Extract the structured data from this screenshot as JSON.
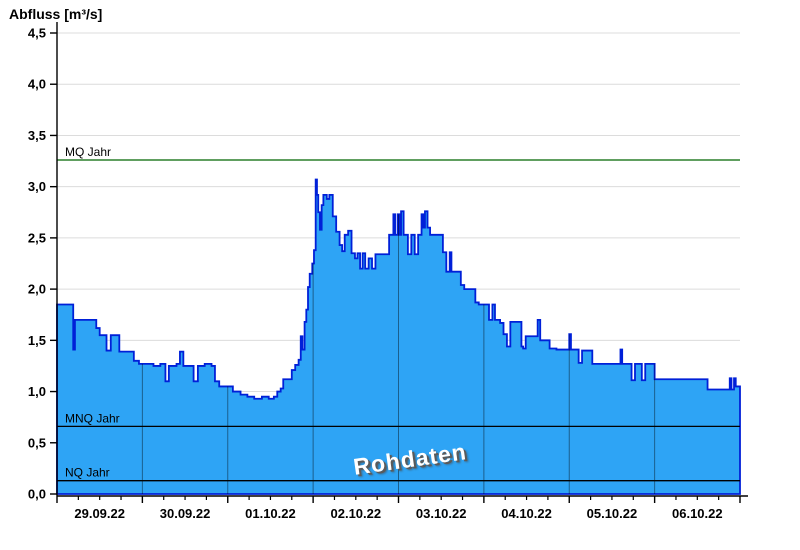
{
  "title": "Abfluss [m³/s]",
  "chart_data": {
    "type": "area",
    "title": "Abfluss [m³/s]",
    "ylabel": "Abfluss [m³/s]",
    "xlabel": "",
    "watermark": "Rohdaten",
    "ylim": [
      0,
      4.5
    ],
    "y_tick_step": 0.5,
    "y_tick_labels": [
      "0,0",
      "0,5",
      "1,0",
      "1,5",
      "2,0",
      "2,5",
      "3,0",
      "3,5",
      "4,0",
      "4,5"
    ],
    "x_days": 8,
    "x_minor_ticks_per_day": 4,
    "x_tick_labels": [
      "29.09.22",
      "30.09.22",
      "01.10.22",
      "02.10.22",
      "03.10.22",
      "04.10.22",
      "05.10.22",
      "06.10.22"
    ],
    "grid": "horizontal-light, vertical day lines inside area",
    "legend_position": "none",
    "reference_lines": [
      {
        "label": "MQ Jahr",
        "value": 3.26,
        "color": "#006600"
      },
      {
        "label": "MNQ Jahr",
        "value": 0.66,
        "color": "#000000"
      },
      {
        "label": "NQ Jahr",
        "value": 0.13,
        "color": "#000000"
      }
    ],
    "colors": {
      "area_fill": "#2EA4F5",
      "area_line": "#0020D8",
      "grid_line": "#DCDCDC",
      "axis_line": "#000000",
      "day_line_on_area": "rgba(0,0,0,0.42)"
    },
    "series": [
      {
        "name": "Abfluss",
        "unit": "m³/s",
        "points": [
          [
            0.0,
            1.85
          ],
          [
            0.17,
            1.85
          ],
          [
            0.19,
            1.41
          ],
          [
            0.21,
            1.7
          ],
          [
            0.42,
            1.7
          ],
          [
            0.46,
            1.62
          ],
          [
            0.5,
            1.55
          ],
          [
            0.56,
            1.55
          ],
          [
            0.58,
            1.4
          ],
          [
            0.63,
            1.55
          ],
          [
            0.71,
            1.55
          ],
          [
            0.73,
            1.39
          ],
          [
            0.83,
            1.39
          ],
          [
            0.9,
            1.3
          ],
          [
            0.96,
            1.27
          ],
          [
            1.04,
            1.27
          ],
          [
            1.13,
            1.25
          ],
          [
            1.21,
            1.27
          ],
          [
            1.27,
            1.1
          ],
          [
            1.31,
            1.25
          ],
          [
            1.4,
            1.27
          ],
          [
            1.44,
            1.39
          ],
          [
            1.48,
            1.25
          ],
          [
            1.56,
            1.25
          ],
          [
            1.6,
            1.1
          ],
          [
            1.65,
            1.25
          ],
          [
            1.73,
            1.27
          ],
          [
            1.81,
            1.25
          ],
          [
            1.85,
            1.1
          ],
          [
            1.9,
            1.05
          ],
          [
            1.98,
            1.05
          ],
          [
            2.06,
            1.0
          ],
          [
            2.15,
            0.97
          ],
          [
            2.23,
            0.95
          ],
          [
            2.31,
            0.93
          ],
          [
            2.4,
            0.95
          ],
          [
            2.48,
            0.93
          ],
          [
            2.54,
            0.95
          ],
          [
            2.58,
            1.0
          ],
          [
            2.62,
            1.03
          ],
          [
            2.65,
            1.12
          ],
          [
            2.71,
            1.12
          ],
          [
            2.75,
            1.21
          ],
          [
            2.79,
            1.26
          ],
          [
            2.83,
            1.31
          ],
          [
            2.855,
            1.54
          ],
          [
            2.875,
            1.41
          ],
          [
            2.9,
            1.68
          ],
          [
            2.92,
            1.8
          ],
          [
            2.94,
            2.02
          ],
          [
            2.96,
            2.15
          ],
          [
            2.99,
            2.25
          ],
          [
            3.01,
            2.38
          ],
          [
            3.03,
            3.07
          ],
          [
            3.045,
            2.92
          ],
          [
            3.06,
            2.75
          ],
          [
            3.08,
            2.58
          ],
          [
            3.1,
            2.82
          ],
          [
            3.12,
            2.92
          ],
          [
            3.16,
            2.88
          ],
          [
            3.19,
            2.92
          ],
          [
            3.23,
            2.71
          ],
          [
            3.27,
            2.56
          ],
          [
            3.31,
            2.43
          ],
          [
            3.34,
            2.37
          ],
          [
            3.37,
            2.53
          ],
          [
            3.41,
            2.57
          ],
          [
            3.45,
            2.35
          ],
          [
            3.49,
            2.3
          ],
          [
            3.52,
            2.35
          ],
          [
            3.55,
            2.2
          ],
          [
            3.58,
            2.35
          ],
          [
            3.61,
            2.2
          ],
          [
            3.65,
            2.3
          ],
          [
            3.69,
            2.2
          ],
          [
            3.73,
            2.34
          ],
          [
            3.82,
            2.34
          ],
          [
            3.89,
            2.53
          ],
          [
            3.94,
            2.73
          ],
          [
            3.96,
            2.53
          ],
          [
            3.99,
            2.73
          ],
          [
            4.01,
            2.53
          ],
          [
            4.03,
            2.76
          ],
          [
            4.06,
            2.53
          ],
          [
            4.11,
            2.34
          ],
          [
            4.15,
            2.53
          ],
          [
            4.19,
            2.34
          ],
          [
            4.23,
            2.53
          ],
          [
            4.27,
            2.73
          ],
          [
            4.29,
            2.6
          ],
          [
            4.31,
            2.76
          ],
          [
            4.34,
            2.6
          ],
          [
            4.37,
            2.53
          ],
          [
            4.48,
            2.53
          ],
          [
            4.52,
            2.36
          ],
          [
            4.56,
            2.17
          ],
          [
            4.6,
            2.36
          ],
          [
            4.62,
            2.17
          ],
          [
            4.69,
            2.17
          ],
          [
            4.73,
            2.04
          ],
          [
            4.77,
            2.0
          ],
          [
            4.86,
            2.0
          ],
          [
            4.9,
            1.87
          ],
          [
            4.94,
            1.85
          ],
          [
            5.02,
            1.85
          ],
          [
            5.06,
            1.7
          ],
          [
            5.1,
            1.85
          ],
          [
            5.13,
            1.7
          ],
          [
            5.19,
            1.67
          ],
          [
            5.23,
            1.56
          ],
          [
            5.27,
            1.44
          ],
          [
            5.31,
            1.68
          ],
          [
            5.4,
            1.68
          ],
          [
            5.44,
            1.44
          ],
          [
            5.46,
            1.42
          ],
          [
            5.49,
            1.54
          ],
          [
            5.6,
            1.54
          ],
          [
            5.63,
            1.7
          ],
          [
            5.66,
            1.5
          ],
          [
            5.73,
            1.5
          ],
          [
            5.77,
            1.42
          ],
          [
            5.85,
            1.41
          ],
          [
            5.98,
            1.41
          ],
          [
            6.0,
            1.56
          ],
          [
            6.02,
            1.41
          ],
          [
            6.08,
            1.41
          ],
          [
            6.11,
            1.28
          ],
          [
            6.15,
            1.4
          ],
          [
            6.23,
            1.4
          ],
          [
            6.27,
            1.27
          ],
          [
            6.5,
            1.27
          ],
          [
            6.6,
            1.41
          ],
          [
            6.62,
            1.27
          ],
          [
            6.69,
            1.27
          ],
          [
            6.73,
            1.11
          ],
          [
            6.77,
            1.27
          ],
          [
            6.85,
            1.11
          ],
          [
            6.89,
            1.27
          ],
          [
            6.96,
            1.27
          ],
          [
            7.0,
            1.12
          ],
          [
            7.58,
            1.12
          ],
          [
            7.62,
            1.02
          ],
          [
            7.86,
            1.02
          ],
          [
            7.88,
            1.13
          ],
          [
            7.9,
            1.02
          ],
          [
            7.93,
            1.13
          ],
          [
            7.95,
            1.05
          ],
          [
            8.0,
            1.05
          ]
        ]
      }
    ]
  }
}
